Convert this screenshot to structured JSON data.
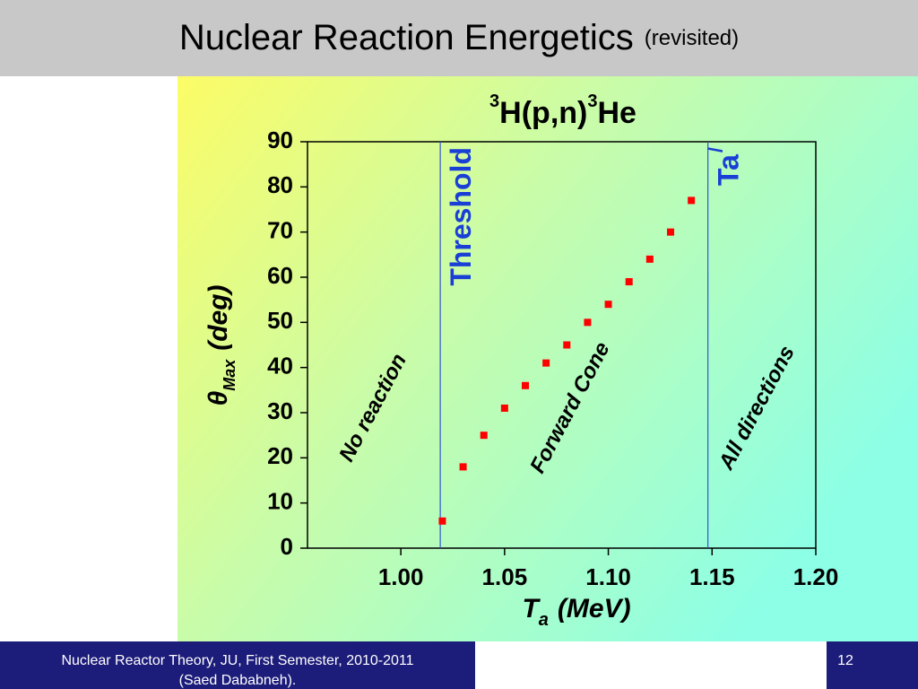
{
  "slide": {
    "title": "Nuclear Reaction Energetics",
    "title_note": "(revisited)",
    "footer_left": [
      "Nuclear Reactor Theory, JU, First Semester, 2010-2011",
      "(Saed Dababneh)."
    ],
    "page_number": "12"
  },
  "chart_data": {
    "type": "scatter",
    "title_parts": [
      "3",
      "H(p,n)",
      "3",
      "He"
    ],
    "x_label_parts": [
      "T",
      "a",
      "(MeV)"
    ],
    "y_label_parts": [
      "θ",
      "Max",
      "(deg)"
    ],
    "x": [
      1.02,
      1.03,
      1.04,
      1.05,
      1.06,
      1.07,
      1.08,
      1.09,
      1.1,
      1.11,
      1.12,
      1.13,
      1.14
    ],
    "series": [
      {
        "color": "#ff0000",
        "values": [
          6,
          18,
          25,
          31,
          36,
          41,
          45,
          50,
          54,
          59,
          64,
          70,
          77
        ]
      }
    ],
    "xlim": [
      0.955,
      1.2
    ],
    "ylim": [
      0,
      90
    ],
    "xticks": [
      {
        "value": 1.0,
        "label": "1.00"
      },
      1.05,
      {
        "value": 1.1,
        "label": "1.10"
      },
      1.15,
      {
        "value": 1.2,
        "label": "1.20"
      }
    ],
    "yticks": [
      0,
      10,
      20,
      30,
      40,
      50,
      60,
      70,
      80,
      90
    ],
    "vlines": [
      {
        "x": 1.019,
        "label": "Threshold"
      },
      {
        "x": 1.148,
        "label": "Ta",
        "label_sup": "/"
      }
    ],
    "line_color": "#3355cc",
    "annotations": [
      {
        "text": "No reaction",
        "x": 0.987,
        "y": 31
      },
      {
        "text": "Forward Cone",
        "x": 1.082,
        "y": 31
      },
      {
        "text": "All directions",
        "x": 1.172,
        "y": 31
      }
    ]
  }
}
